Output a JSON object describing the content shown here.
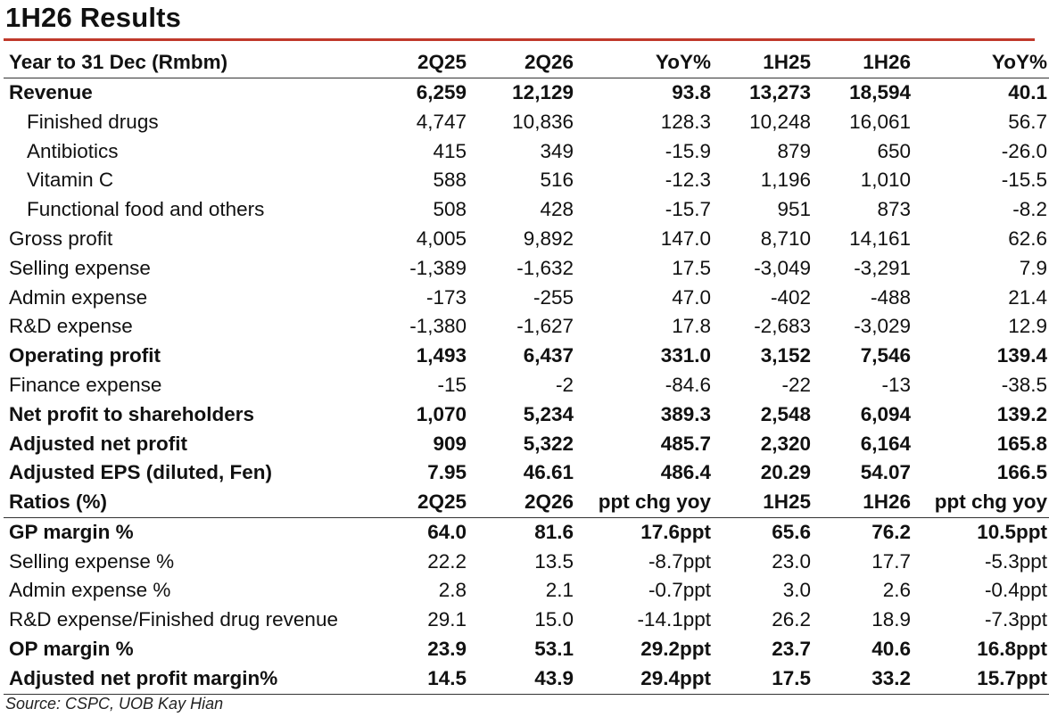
{
  "title": "1H26 Results",
  "source": "Source: CSPC, UOB Kay Hian",
  "header": [
    "Year to 31 Dec (Rmbm)",
    "2Q25",
    "2Q26",
    "YoY%",
    "1H25",
    "1H26",
    "YoY%"
  ],
  "rows": [
    {
      "label": "Revenue",
      "values": [
        "6,259",
        "12,129",
        "93.8",
        "13,273",
        "18,594",
        "40.1"
      ],
      "style": "bold"
    },
    {
      "label": "Finished drugs",
      "values": [
        "4,747",
        "10,836",
        "128.3",
        "10,248",
        "16,061",
        "56.7"
      ],
      "style": "sub"
    },
    {
      "label": "Antibiotics",
      "values": [
        "415",
        "349",
        "-15.9",
        "879",
        "650",
        "-26.0"
      ],
      "style": "sub"
    },
    {
      "label": "Vitamin C",
      "values": [
        "588",
        "516",
        "-12.3",
        "1,196",
        "1,010",
        "-15.5"
      ],
      "style": "sub"
    },
    {
      "label": "Functional food and others",
      "values": [
        "508",
        "428",
        "-15.7",
        "951",
        "873",
        "-8.2"
      ],
      "style": "sub"
    },
    {
      "label": "Gross profit",
      "values": [
        "4,005",
        "9,892",
        "147.0",
        "8,710",
        "14,161",
        "62.6"
      ],
      "style": "normal"
    },
    {
      "label": "Selling expense",
      "values": [
        "-1,389",
        "-1,632",
        "17.5",
        "-3,049",
        "-3,291",
        "7.9"
      ],
      "style": "normal"
    },
    {
      "label": "Admin expense",
      "values": [
        "-173",
        "-255",
        "47.0",
        "-402",
        "-488",
        "21.4"
      ],
      "style": "normal"
    },
    {
      "label": "R&D expense",
      "values": [
        "-1,380",
        "-1,627",
        "17.8",
        "-2,683",
        "-3,029",
        "12.9"
      ],
      "style": "normal"
    },
    {
      "label": "Operating profit",
      "values": [
        "1,493",
        "6,437",
        "331.0",
        "3,152",
        "7,546",
        "139.4"
      ],
      "style": "bold"
    },
    {
      "label": "Finance expense",
      "values": [
        "-15",
        "-2",
        "-84.6",
        "-22",
        "-13",
        "-38.5"
      ],
      "style": "normal"
    },
    {
      "label": "Net profit to shareholders",
      "values": [
        "1,070",
        "5,234",
        "389.3",
        "2,548",
        "6,094",
        "139.2"
      ],
      "style": "bold"
    },
    {
      "label": "Adjusted net profit",
      "values": [
        "909",
        "5,322",
        "485.7",
        "2,320",
        "6,164",
        "165.8"
      ],
      "style": "bold"
    },
    {
      "label": "Adjusted EPS (diluted, Fen)",
      "values": [
        "7.95",
        "46.61",
        "486.4",
        "20.29",
        "54.07",
        "166.5"
      ],
      "style": "bold"
    }
  ],
  "ratio_header": [
    "Ratios (%)",
    "2Q25",
    "2Q26",
    "ppt chg yoy",
    "1H25",
    "1H26",
    "ppt chg yoy"
  ],
  "ratio_rows": [
    {
      "label": "GP margin %",
      "values": [
        "64.0",
        "81.6",
        "17.6ppt",
        "65.6",
        "76.2",
        "10.5ppt"
      ],
      "style": "bold"
    },
    {
      "label": "Selling expense %",
      "values": [
        "22.2",
        "13.5",
        "-8.7ppt",
        "23.0",
        "17.7",
        "-5.3ppt"
      ],
      "style": "normal"
    },
    {
      "label": "Admin expense %",
      "values": [
        "2.8",
        "2.1",
        "-0.7ppt",
        "3.0",
        "2.6",
        "-0.4ppt"
      ],
      "style": "normal"
    },
    {
      "label": "R&D expense/Finished drug revenue",
      "values": [
        "29.1",
        "15.0",
        "-14.1ppt",
        "26.2",
        "18.9",
        "-7.3ppt"
      ],
      "style": "normal"
    },
    {
      "label": "OP margin %",
      "values": [
        "23.9",
        "53.1",
        "29.2ppt",
        "23.7",
        "40.6",
        "16.8ppt"
      ],
      "style": "bold"
    },
    {
      "label": "Adjusted net profit margin%",
      "values": [
        "14.5",
        "43.9",
        "29.4ppt",
        "17.5",
        "33.2",
        "15.7ppt"
      ],
      "style": "bold"
    }
  ],
  "colors": {
    "accent_rule": "#c0392b"
  }
}
